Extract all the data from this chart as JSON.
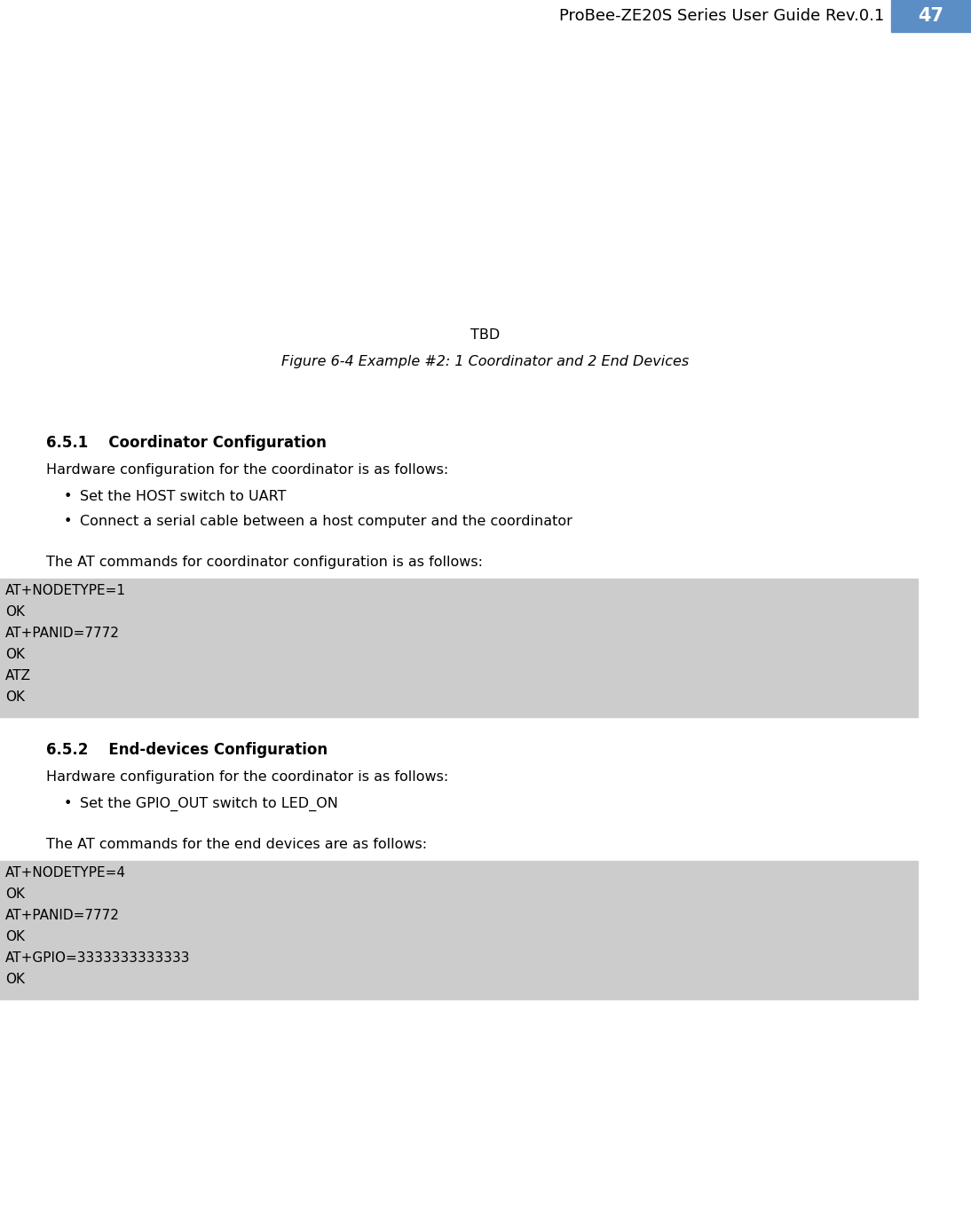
{
  "header_text": "ProBee-ZE20S Series User Guide Rev.0.1",
  "header_page": "47",
  "header_bg_color": "#5b8ec4",
  "header_text_color": "#000000",
  "header_page_color": "#ffffff",
  "page_bg_color": "#ffffff",
  "tbd_text": "TBD",
  "figure_caption": "Figure 6-4 Example #2: 1 Coordinator and 2 End Devices",
  "section1_heading": "6.5.1    Coordinator Configuration",
  "section1_body1": "Hardware configuration for the coordinator is as follows:",
  "section1_bullets": [
    "Set the HOST switch to UART",
    "Connect a serial cable between a host computer and the coordinator"
  ],
  "section1_body2": "The AT commands for coordinator configuration is as follows:",
  "section1_code": [
    "AT+NODETYPE=1",
    "OK",
    "AT+PANID=7772",
    "OK",
    "ATZ",
    "OK"
  ],
  "section2_heading": "6.5.2    End-devices Configuration",
  "section2_body1": "Hardware configuration for the coordinator is as follows:",
  "section2_bullets": [
    "Set the GPIO_OUT switch to LED_ON"
  ],
  "section2_body2": "The AT commands for the end devices are as follows:",
  "section2_code": [
    "AT+NODETYPE=4",
    "OK",
    "AT+PANID=7772",
    "OK",
    "AT+GPIO=3333333333333",
    "OK"
  ],
  "code_bg_color": "#cccccc",
  "body_font_size": 11.5,
  "heading_font_size": 12,
  "code_font_size": 11,
  "caption_font_size": 11.5,
  "tbd_font_size": 11.5
}
